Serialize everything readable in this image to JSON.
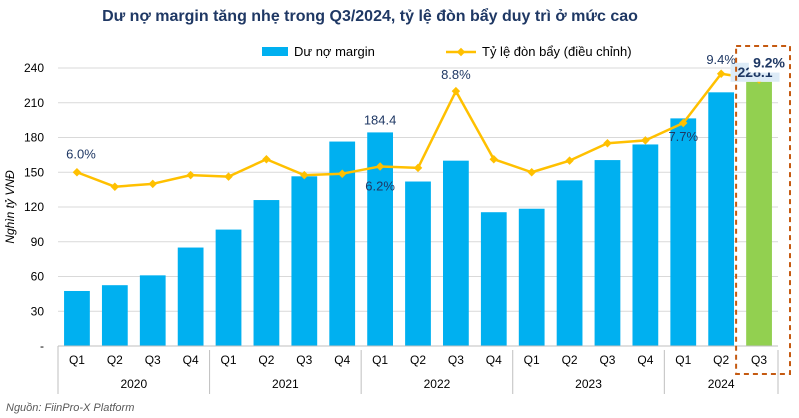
{
  "chart_data": {
    "type": "bar+line",
    "title": "Dư nợ margin tăng nhẹ trong Q3/2024, tỷ lệ đòn bẩy duy trì ở mức cao",
    "ylabel": "Nghìn tỷ VNĐ",
    "ylim": [
      0,
      240
    ],
    "yticks": [
      "-",
      "30",
      "60",
      "90",
      "120",
      "150",
      "180",
      "210",
      "240"
    ],
    "categories": [
      "Q1",
      "Q2",
      "Q3",
      "Q4",
      "Q1",
      "Q2",
      "Q3",
      "Q4",
      "Q1",
      "Q2",
      "Q3",
      "Q4",
      "Q1",
      "Q2",
      "Q3",
      "Q4",
      "Q1",
      "Q2",
      "Q3"
    ],
    "years": [
      {
        "label": "2020",
        "count": 4
      },
      {
        "label": "2021",
        "count": 4
      },
      {
        "label": "2022",
        "count": 4
      },
      {
        "label": "2023",
        "count": 4
      },
      {
        "label": "2024",
        "count": 3
      }
    ],
    "series": [
      {
        "name": "Dư nợ margin",
        "type": "bar",
        "axis": "left",
        "color": "#00b0f0",
        "highlight_color": "#92d050",
        "highlight_index": 18,
        "values": [
          47.5,
          52.5,
          61,
          85,
          100.5,
          126,
          146.5,
          176.5,
          184.4,
          142,
          160,
          115.5,
          118.5,
          143,
          160.5,
          174,
          196.5,
          219,
          228.1
        ]
      },
      {
        "name": "Tỷ lệ đòn bẩy (điều chỉnh)",
        "type": "line",
        "axis": "right",
        "color": "#ffc000",
        "values": [
          6.0,
          5.5,
          5.6,
          5.9,
          5.85,
          6.45,
          5.9,
          5.95,
          6.2,
          6.15,
          8.8,
          6.45,
          6.0,
          6.4,
          7.0,
          7.1,
          7.7,
          9.4,
          9.2
        ]
      }
    ],
    "right_axis_range": [
      0,
      9.6
    ],
    "data_labels": [
      {
        "series": 0,
        "index": 8,
        "text": "184.4",
        "style": "normal"
      },
      {
        "series": 0,
        "index": 18,
        "text": "228.1",
        "style": "bold"
      },
      {
        "series": 1,
        "index": 0,
        "text": "6.0%",
        "style": "normal"
      },
      {
        "series": 1,
        "index": 8,
        "text": "6.2%",
        "style": "normal"
      },
      {
        "series": 1,
        "index": 10,
        "text": "8.8%",
        "style": "normal"
      },
      {
        "series": 1,
        "index": 16,
        "text": "7.7%",
        "style": "normal"
      },
      {
        "series": 1,
        "index": 17,
        "text": "9.4%",
        "style": "normal"
      },
      {
        "series": 1,
        "index": 18,
        "text": "9.2%",
        "style": "bold"
      }
    ],
    "highlight_box_color": "#c55a11",
    "legend_position": "top-center"
  },
  "source": "Nguồn: FiinPro-X Platform"
}
